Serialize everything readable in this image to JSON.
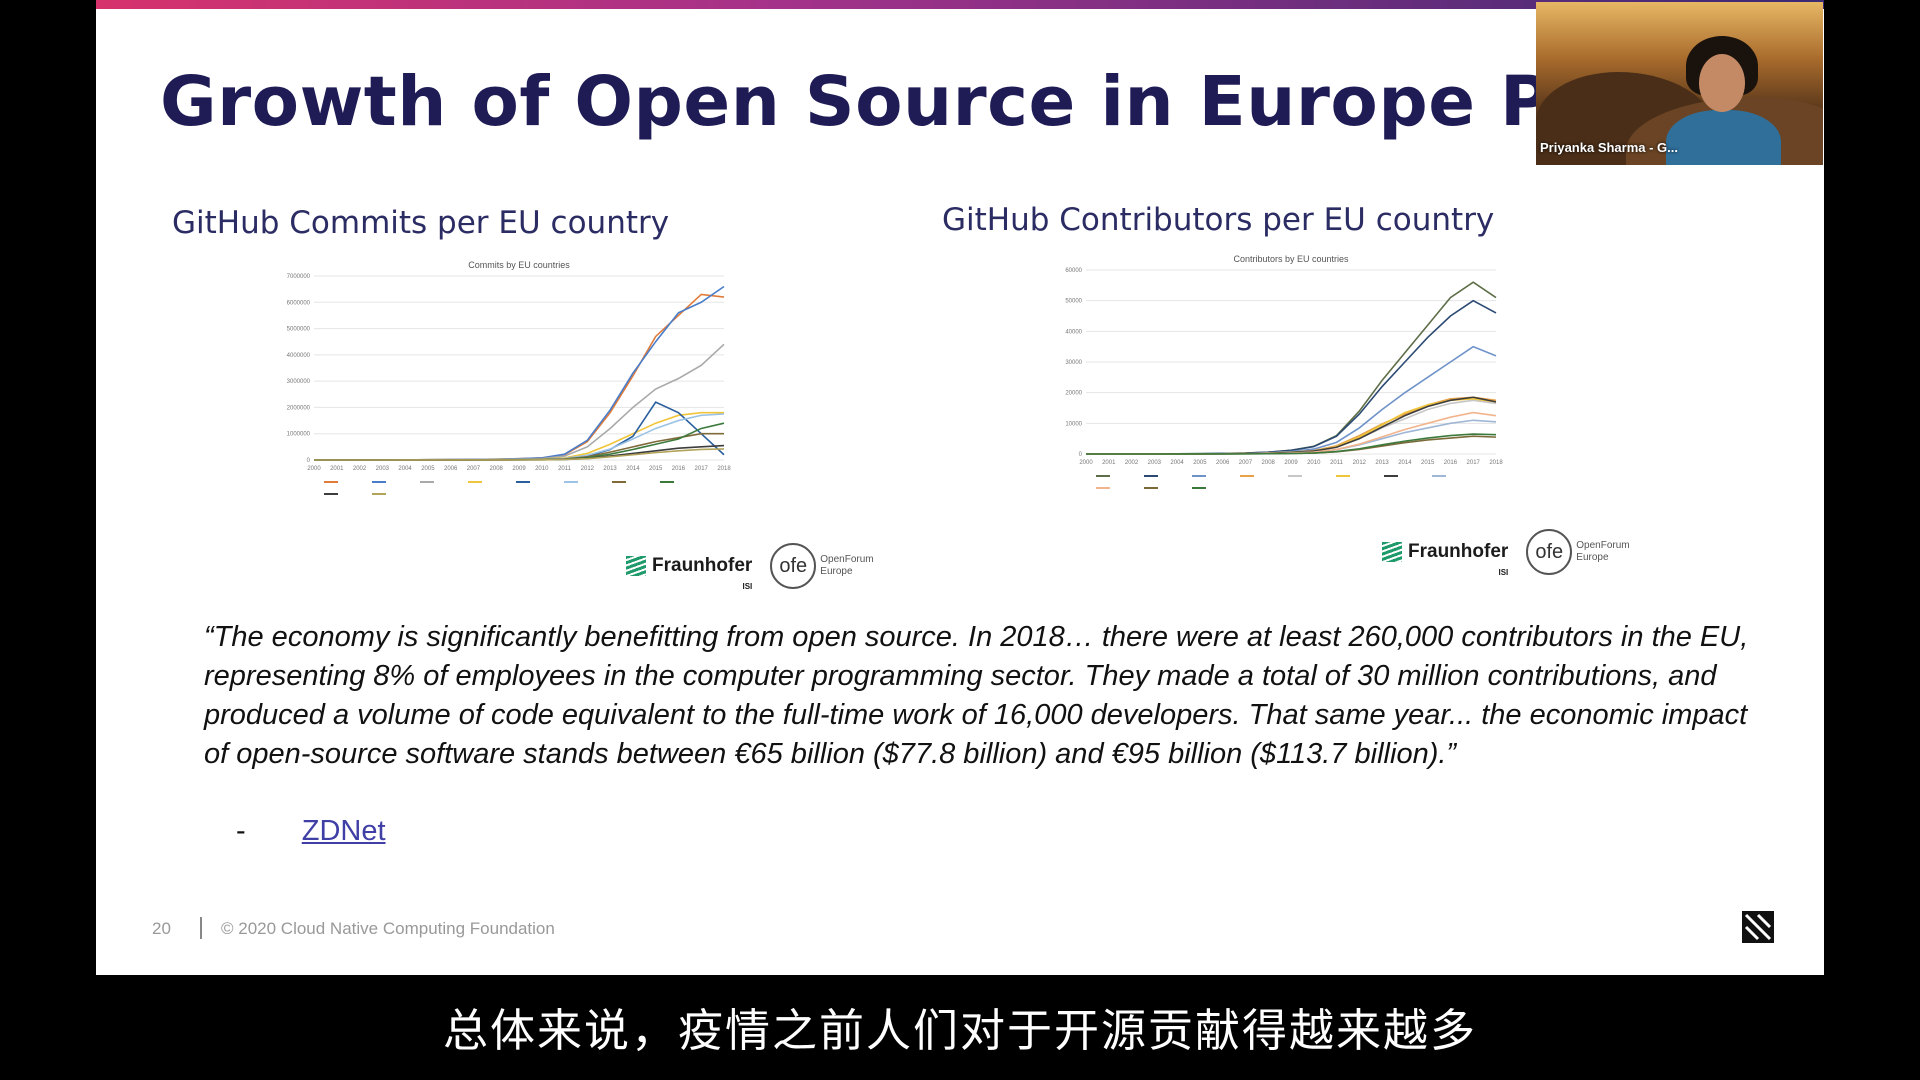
{
  "slide": {
    "title": "Growth of Open Source in Europe Pre COVID",
    "left_heading": "GitHub Commits per EU country",
    "right_heading": "GitHub Contributors per EU country",
    "quote": "“The economy is significantly benefitting from open source. In 2018… there were at least 260,000 contributors in the EU, representing 8% of employees in the computer programming sector. They made a total of 30 million contributions, and produced a volume of code equivalent to the full-time work of 16,000 developers. That same year... the economic impact of open-source software stands between €65 billion ($77.8 billion) and €95 billion ($113.7 billion).”",
    "source_dash": "-",
    "source_label": "ZDNet",
    "footer_page": "20",
    "footer_copyright": "© 2020 Cloud Native Computing Foundation",
    "fraunhofer_label": "Fraunhofer",
    "fraunhofer_sub": "ISI",
    "ofe_mark": "ofe",
    "ofe_line1": "OpenForum",
    "ofe_line2": "Europe"
  },
  "webcam": {
    "name": "Priyanka Sharma - G..."
  },
  "subtitle": "总体来说，疫情之前人们对于开源贡献得越来越多",
  "chart_data": [
    {
      "type": "line",
      "title": "Commits by EU countries",
      "x": [
        2000,
        2001,
        2002,
        2003,
        2004,
        2005,
        2006,
        2007,
        2008,
        2009,
        2010,
        2011,
        2012,
        2013,
        2014,
        2015,
        2016,
        2017,
        2018
      ],
      "xticks": [
        "2000",
        "2001",
        "2002",
        "2003",
        "2004",
        "2005",
        "2006",
        "2007",
        "2008",
        "2009",
        "2010",
        "2011",
        "2012",
        "2013",
        "2014",
        "2015",
        "2016",
        "2017",
        "2018"
      ],
      "yticks": [
        "0",
        "1000000",
        "2000000",
        "3000000",
        "4000000",
        "5000000",
        "6000000",
        "7000000"
      ],
      "ylim": [
        0,
        7000000
      ],
      "grid": true,
      "legend_position": "bottom",
      "series": [
        {
          "color": "#e07b39",
          "values": [
            0,
            0,
            0,
            0,
            5000,
            10000,
            15000,
            20000,
            30000,
            50000,
            80000,
            200000,
            700000,
            1800000,
            3200000,
            4700000,
            5500000,
            6300000,
            6200000
          ]
        },
        {
          "color": "#4a7dc9",
          "values": [
            0,
            0,
            0,
            0,
            5000,
            10000,
            15000,
            20000,
            30000,
            50000,
            80000,
            220000,
            750000,
            1900000,
            3300000,
            4500000,
            5600000,
            6000000,
            6600000
          ]
        },
        {
          "color": "#a9a9a9",
          "values": [
            0,
            0,
            0,
            0,
            3000,
            6000,
            9000,
            12000,
            20000,
            30000,
            50000,
            150000,
            500000,
            1200000,
            2000000,
            2700000,
            3100000,
            3600000,
            4400000
          ]
        },
        {
          "color": "#f0c53a",
          "values": [
            0,
            0,
            0,
            0,
            2000,
            4000,
            6000,
            8000,
            12000,
            20000,
            30000,
            80000,
            250000,
            600000,
            1000000,
            1400000,
            1700000,
            1800000,
            1800000
          ]
        },
        {
          "color": "#2a5f9e",
          "values": [
            0,
            0,
            0,
            0,
            1000,
            2000,
            3000,
            5000,
            8000,
            12000,
            20000,
            50000,
            150000,
            400000,
            900000,
            2200000,
            1800000,
            1000000,
            200000
          ]
        },
        {
          "color": "#9cc3e6",
          "values": [
            0,
            0,
            0,
            0,
            1000,
            2000,
            3000,
            5000,
            8000,
            12000,
            20000,
            60000,
            180000,
            420000,
            800000,
            1200000,
            1500000,
            1700000,
            1750000
          ]
        },
        {
          "color": "#7f6a3a",
          "values": [
            0,
            0,
            0,
            0,
            1000,
            2000,
            3000,
            4000,
            6000,
            9000,
            15000,
            40000,
            120000,
            300000,
            500000,
            700000,
            850000,
            1000000,
            1000000
          ]
        },
        {
          "color": "#3c7a3c",
          "values": [
            0,
            0,
            0,
            0,
            800,
            1500,
            2000,
            3000,
            5000,
            8000,
            12000,
            30000,
            90000,
            220000,
            400000,
            600000,
            800000,
            1200000,
            1400000
          ]
        },
        {
          "color": "#3d3d3d",
          "values": [
            0,
            0,
            0,
            0,
            500,
            1000,
            1500,
            2000,
            3000,
            5000,
            8000,
            20000,
            60000,
            150000,
            250000,
            350000,
            450000,
            500000,
            550000
          ]
        },
        {
          "color": "#b2a35a",
          "values": [
            0,
            0,
            0,
            0,
            500,
            1000,
            1500,
            2000,
            3000,
            5000,
            8000,
            20000,
            50000,
            120000,
            200000,
            280000,
            350000,
            400000,
            420000
          ]
        }
      ]
    },
    {
      "type": "line",
      "title": "Contributors by EU countries",
      "x": [
        2000,
        2001,
        2002,
        2003,
        2004,
        2005,
        2006,
        2007,
        2008,
        2009,
        2010,
        2011,
        2012,
        2013,
        2014,
        2015,
        2016,
        2017,
        2018
      ],
      "xticks": [
        "2000",
        "2001",
        "2002",
        "2003",
        "2004",
        "2005",
        "2006",
        "2007",
        "2008",
        "2009",
        "2010",
        "2011",
        "2012",
        "2013",
        "2014",
        "2015",
        "2016",
        "2017",
        "2018"
      ],
      "yticks": [
        "0",
        "10000",
        "20000",
        "30000",
        "40000",
        "50000",
        "60000"
      ],
      "ylim": [
        0,
        60000
      ],
      "grid": true,
      "legend_position": "bottom",
      "series": [
        {
          "color": "#5e6e48",
          "values": [
            0,
            0,
            0,
            0,
            50,
            100,
            200,
            300,
            600,
            1200,
            2500,
            6000,
            14000,
            24000,
            33000,
            42000,
            51000,
            56000,
            51000
          ]
        },
        {
          "color": "#2b4a73",
          "values": [
            0,
            0,
            0,
            0,
            50,
            100,
            200,
            300,
            600,
            1200,
            2400,
            5800,
            13000,
            22000,
            30000,
            38000,
            45000,
            50000,
            46000
          ]
        },
        {
          "color": "#6f93c9",
          "values": [
            0,
            0,
            0,
            0,
            30,
            60,
            120,
            200,
            400,
            800,
            1600,
            3800,
            8500,
            14500,
            20000,
            25000,
            30000,
            35000,
            32000
          ]
        },
        {
          "color": "#e6a14a",
          "values": [
            0,
            0,
            0,
            0,
            20,
            40,
            80,
            150,
            300,
            600,
            1100,
            2700,
            6000,
            9800,
            13000,
            16000,
            18000,
            18500,
            17500
          ]
        },
        {
          "color": "#c7c7c7",
          "values": [
            0,
            0,
            0,
            0,
            20,
            40,
            80,
            150,
            300,
            600,
            1000,
            2300,
            5000,
            8500,
            11500,
            14500,
            16500,
            17500,
            16500
          ]
        },
        {
          "color": "#f0c53a",
          "values": [
            0,
            0,
            0,
            0,
            20,
            40,
            80,
            140,
            280,
            560,
            1000,
            2400,
            5500,
            9500,
            13500,
            16000,
            17500,
            18000,
            17000
          ]
        },
        {
          "color": "#3d3d3d",
          "values": [
            0,
            0,
            0,
            0,
            20,
            40,
            80,
            140,
            260,
            520,
            950,
            2200,
            5000,
            8800,
            12500,
            15500,
            17500,
            18500,
            17000
          ]
        },
        {
          "color": "#9fb6d6",
          "values": [
            0,
            0,
            0,
            0,
            10,
            20,
            40,
            80,
            150,
            300,
            600,
            1400,
            3000,
            5000,
            7000,
            8500,
            10000,
            11000,
            10500
          ]
        },
        {
          "color": "#f2b48c",
          "values": [
            0,
            0,
            0,
            0,
            10,
            20,
            40,
            80,
            150,
            300,
            600,
            1500,
            3200,
            5600,
            8000,
            10000,
            12000,
            13500,
            12500
          ]
        },
        {
          "color": "#7c6a3b",
          "values": [
            0,
            0,
            0,
            0,
            5,
            10,
            20,
            40,
            80,
            160,
            300,
            700,
            1500,
            2600,
            3700,
            4600,
            5200,
            5800,
            5500
          ]
        },
        {
          "color": "#3c7a3c",
          "values": [
            0,
            0,
            0,
            0,
            5,
            10,
            20,
            40,
            80,
            160,
            300,
            800,
            1700,
            3000,
            4200,
            5200,
            6000,
            6500,
            6300
          ]
        }
      ]
    }
  ]
}
